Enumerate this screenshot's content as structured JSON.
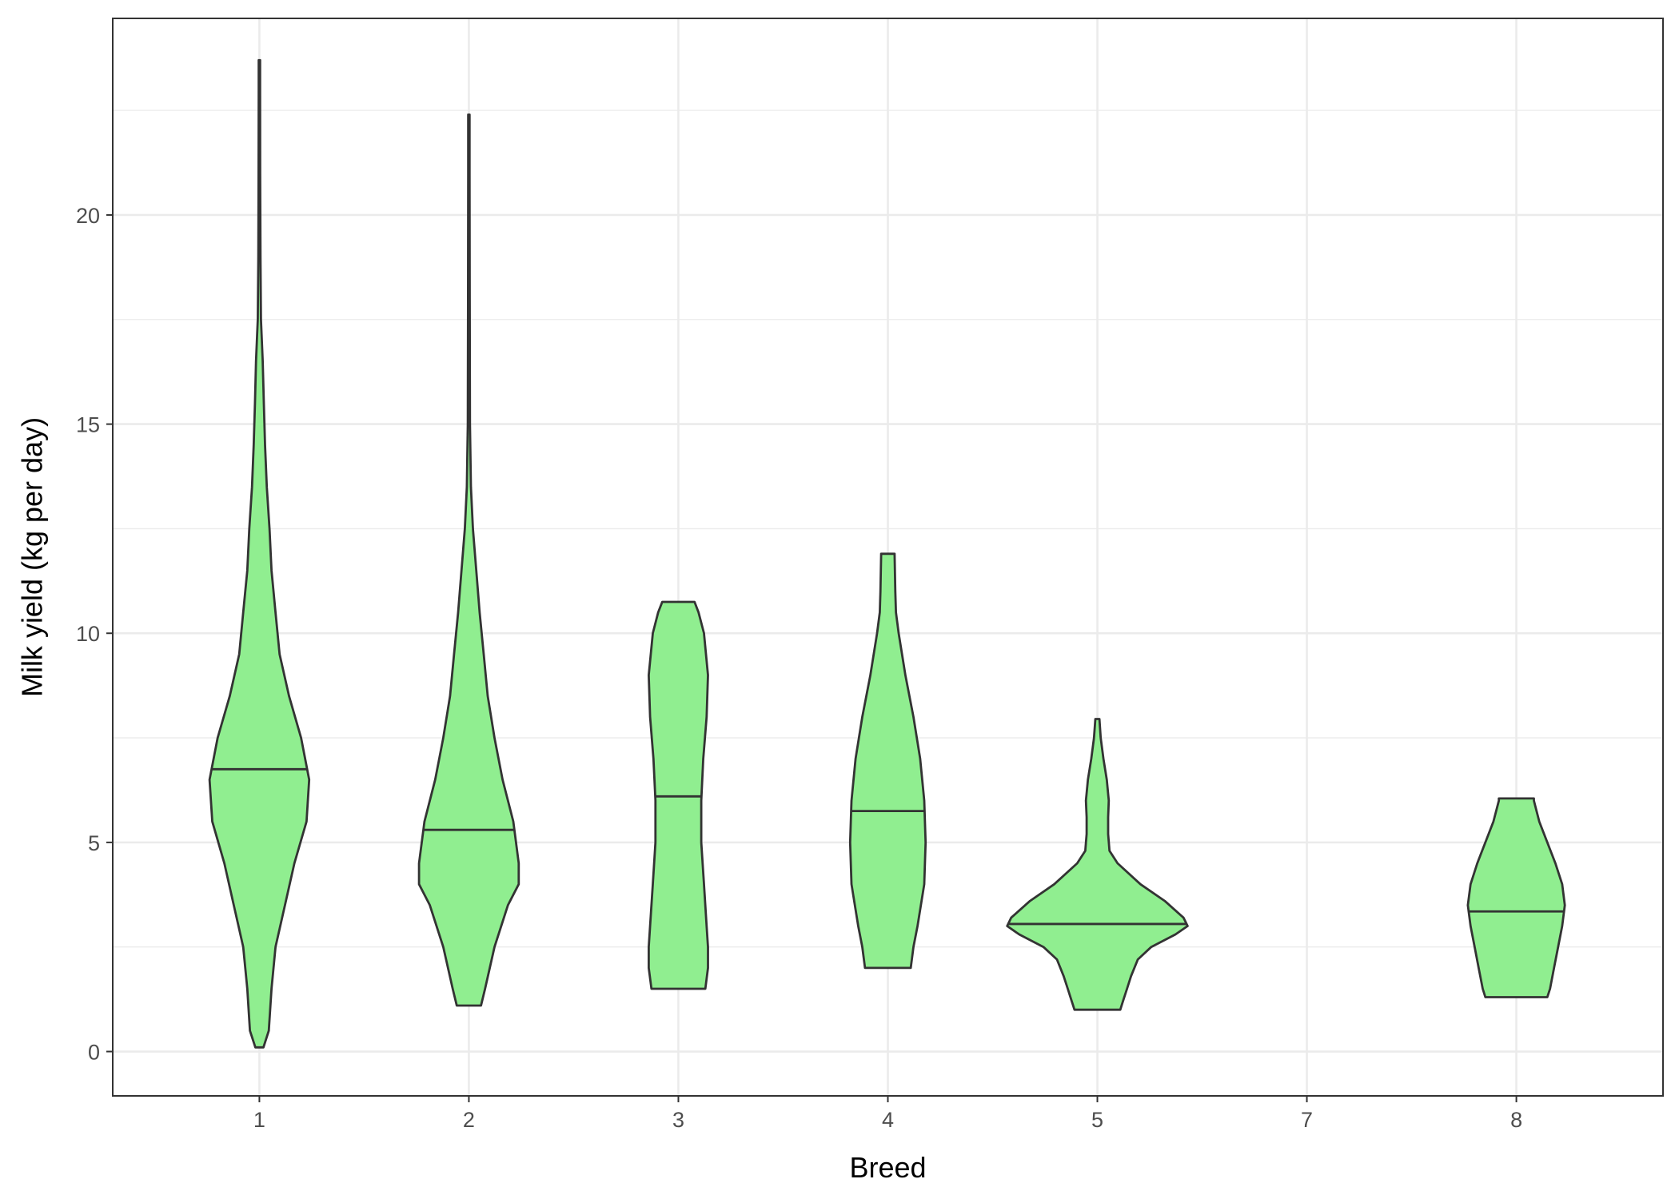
{
  "chart_data": {
    "type": "violin",
    "title": "",
    "xlabel": "Breed",
    "ylabel": "Milk yield (kg per day)",
    "categories": [
      "1",
      "2",
      "3",
      "4",
      "5",
      "7",
      "8"
    ],
    "ylim": [
      -1.06,
      24.7
    ],
    "yticks": [
      0,
      5,
      10,
      15,
      20
    ],
    "grid": true,
    "legend": "none",
    "colors": {
      "fill": "#90ee90",
      "stroke": "#333333",
      "grid": "#ebebeb",
      "panel_border": "#333333"
    },
    "violins": [
      {
        "category": "1",
        "min": 0.1,
        "max": 23.7,
        "median": 6.75,
        "profile": [
          [
            0.1,
            0.3
          ],
          [
            0.5,
            0.7
          ],
          [
            1.5,
            0.9
          ],
          [
            2.5,
            1.2
          ],
          [
            3.5,
            1.9
          ],
          [
            4.5,
            2.6
          ],
          [
            5.5,
            3.5
          ],
          [
            6.5,
            3.7
          ],
          [
            7.5,
            3.1
          ],
          [
            8.5,
            2.2
          ],
          [
            9.5,
            1.5
          ],
          [
            10.5,
            1.2
          ],
          [
            11.5,
            0.9
          ],
          [
            12.5,
            0.75
          ],
          [
            13.5,
            0.55
          ],
          [
            14.5,
            0.42
          ],
          [
            15.5,
            0.33
          ],
          [
            16.5,
            0.25
          ],
          [
            17.5,
            0.12
          ],
          [
            19,
            0.08
          ],
          [
            21,
            0.06
          ],
          [
            23,
            0.05
          ],
          [
            23.7,
            0.05
          ]
        ]
      },
      {
        "category": "2",
        "min": 1.1,
        "max": 22.4,
        "median": 5.3,
        "profile": [
          [
            1.1,
            0.9
          ],
          [
            1.5,
            1.2
          ],
          [
            2.5,
            1.9
          ],
          [
            3.5,
            2.9
          ],
          [
            4.0,
            3.7
          ],
          [
            4.5,
            3.7
          ],
          [
            5.5,
            3.3
          ],
          [
            6.5,
            2.5
          ],
          [
            7.5,
            1.9
          ],
          [
            8.5,
            1.4
          ],
          [
            9.5,
            1.1
          ],
          [
            10.5,
            0.8
          ],
          [
            11.5,
            0.55
          ],
          [
            12.5,
            0.3
          ],
          [
            13.5,
            0.15
          ],
          [
            15,
            0.08
          ],
          [
            18,
            0.06
          ],
          [
            21,
            0.05
          ],
          [
            22.4,
            0.05
          ]
        ]
      },
      {
        "category": "3",
        "min": 1.5,
        "max": 10.75,
        "median": 6.1,
        "profile": [
          [
            1.5,
            2.0
          ],
          [
            2.0,
            2.2
          ],
          [
            2.5,
            2.2
          ],
          [
            3.0,
            2.1
          ],
          [
            4.0,
            1.9
          ],
          [
            5.0,
            1.7
          ],
          [
            6.0,
            1.7
          ],
          [
            7.0,
            1.85
          ],
          [
            8.0,
            2.1
          ],
          [
            9.0,
            2.2
          ],
          [
            10.0,
            1.9
          ],
          [
            10.5,
            1.5
          ],
          [
            10.75,
            1.2
          ]
        ]
      },
      {
        "category": "4",
        "min": 2.0,
        "max": 11.9,
        "median": 5.75,
        "profile": [
          [
            2.0,
            1.7
          ],
          [
            2.5,
            1.9
          ],
          [
            3.0,
            2.2
          ],
          [
            4.0,
            2.7
          ],
          [
            5.0,
            2.8
          ],
          [
            6.0,
            2.7
          ],
          [
            7.0,
            2.4
          ],
          [
            8.0,
            1.9
          ],
          [
            9.0,
            1.3
          ],
          [
            10.0,
            0.8
          ],
          [
            10.5,
            0.6
          ],
          [
            11.0,
            0.55
          ],
          [
            11.9,
            0.5
          ]
        ]
      },
      {
        "category": "5",
        "min": 1.0,
        "max": 7.95,
        "median": 3.05,
        "profile": [
          [
            1.0,
            1.7
          ],
          [
            1.2,
            1.9
          ],
          [
            1.5,
            2.2
          ],
          [
            1.8,
            2.5
          ],
          [
            2.2,
            3.0
          ],
          [
            2.5,
            4.0
          ],
          [
            2.8,
            5.8
          ],
          [
            3.0,
            6.7
          ],
          [
            3.2,
            6.4
          ],
          [
            3.6,
            5.0
          ],
          [
            4.0,
            3.2
          ],
          [
            4.5,
            1.5
          ],
          [
            4.8,
            0.9
          ],
          [
            5.2,
            0.8
          ],
          [
            5.6,
            0.8
          ],
          [
            6.0,
            0.85
          ],
          [
            6.5,
            0.7
          ],
          [
            7.0,
            0.45
          ],
          [
            7.5,
            0.25
          ],
          [
            7.95,
            0.15
          ]
        ]
      },
      {
        "category": "7"
      },
      {
        "category": "8",
        "min": 1.3,
        "max": 6.05,
        "median": 3.35,
        "profile": [
          [
            1.3,
            2.3
          ],
          [
            1.5,
            2.5
          ],
          [
            2.0,
            2.8
          ],
          [
            2.5,
            3.1
          ],
          [
            3.0,
            3.4
          ],
          [
            3.5,
            3.6
          ],
          [
            4.0,
            3.4
          ],
          [
            4.5,
            2.9
          ],
          [
            5.0,
            2.3
          ],
          [
            5.5,
            1.7
          ],
          [
            6.0,
            1.3
          ],
          [
            6.05,
            1.3
          ]
        ]
      }
    ]
  }
}
